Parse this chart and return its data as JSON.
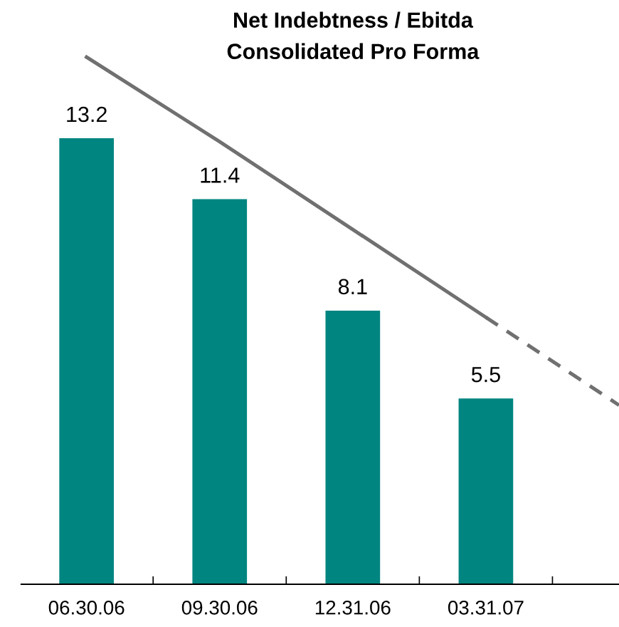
{
  "chart_data": {
    "type": "bar",
    "title": "Net Indebtness / Ebitda",
    "subtitle": "Consolidated Pro Forma",
    "categories": [
      "06.30.06",
      "09.30.06",
      "12.31.06",
      "03.31.07",
      null
    ],
    "values": [
      13.2,
      11.4,
      8.1,
      5.5,
      null
    ],
    "color": "#008580",
    "value_labels": [
      "13.2",
      "11.4",
      "8.1",
      "5.5",
      null
    ],
    "grid": false,
    "legend": false,
    "series": [
      {
        "type": "line",
        "color": "#707070",
        "line_style": "solid",
        "values": [
          15.6,
          13.1,
          10.5,
          7.9,
          null
        ]
      },
      {
        "type": "line",
        "color": "#707070",
        "line_style": "dashed",
        "values": [
          null,
          null,
          null,
          7.9,
          5.3
        ]
      }
    ]
  }
}
